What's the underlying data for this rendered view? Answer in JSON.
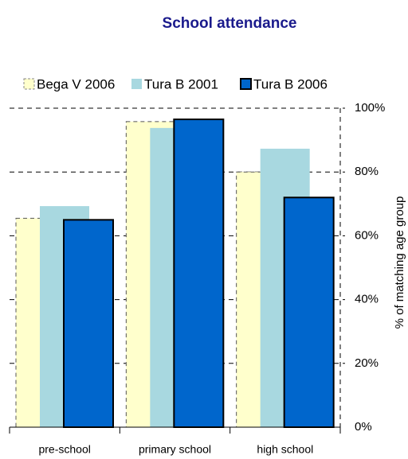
{
  "chart_data": {
    "type": "bar",
    "title": "School attendance",
    "y_axis_label": "% of matching age group",
    "categories": [
      "pre-school",
      "primary school",
      "high school"
    ],
    "series": [
      {
        "name": "Bega V 2006",
        "color": "#ffffcc",
        "values": [
          65.5,
          95.8,
          80
        ]
      },
      {
        "name": "Tura B 2001",
        "color": "#a8d8e0",
        "values": [
          69.3,
          93.8,
          87.3
        ]
      },
      {
        "name": "Tura B 2006",
        "color": "#0066cc",
        "values": [
          65,
          96.5,
          72
        ]
      }
    ],
    "ylim": [
      0,
      100
    ],
    "yticks": [
      {
        "value": 0,
        "label": "0%"
      },
      {
        "value": 20,
        "label": "20%"
      },
      {
        "value": 40,
        "label": "40%"
      },
      {
        "value": 60,
        "label": "60%"
      },
      {
        "value": 80,
        "label": "80%"
      },
      {
        "value": 100,
        "label": "100%"
      }
    ],
    "grid": true
  }
}
